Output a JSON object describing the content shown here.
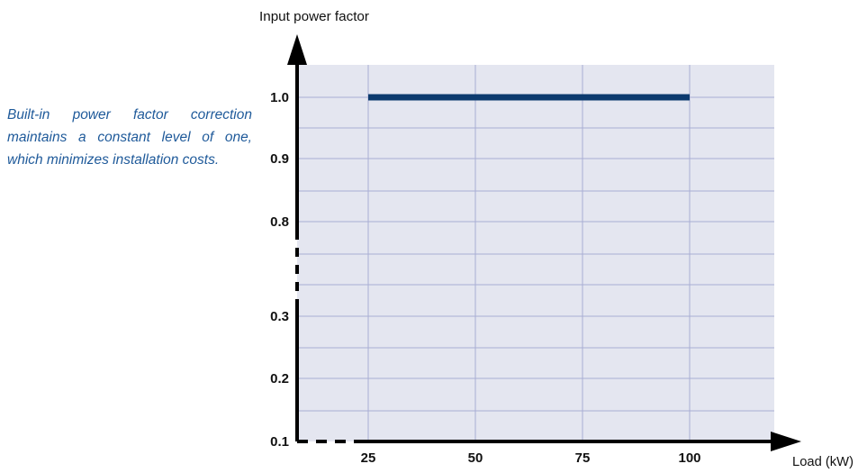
{
  "caption": {
    "lines": [
      "Built-in power factor correction",
      "maintains a constant level of one,",
      "which minimizes installation costs."
    ]
  },
  "colors": {
    "plot_bg": "#e4e6f0",
    "grid": "#a9aed4",
    "line": "#0c3a6e",
    "caption": "#1f5a9a"
  },
  "chart_data": {
    "type": "line",
    "title": "",
    "xlabel": "Load (kW)",
    "ylabel": "Input power factor",
    "x_ticks": [
      25,
      50,
      75,
      100
    ],
    "y_ticks": [
      "1.0",
      "0.9",
      "0.8",
      "0.3",
      "0.2",
      "0.1"
    ],
    "y_axis_break": "between 0.8 and 0.3",
    "grid": true,
    "series": [
      {
        "x": [
          25,
          100
        ],
        "y": [
          1.0,
          1.0
        ]
      }
    ]
  }
}
